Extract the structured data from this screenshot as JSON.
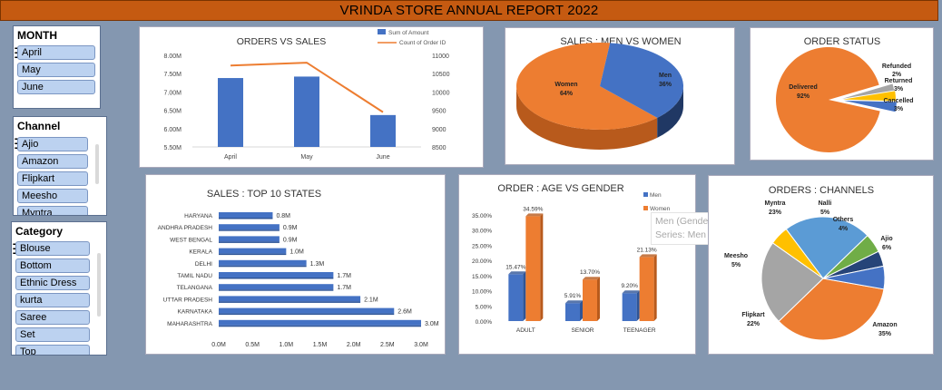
{
  "report_title": "VRINDA STORE ANNUAL  REPORT 2022",
  "slicers": {
    "month": {
      "title": "MONTH",
      "items": [
        "April",
        "May",
        "June"
      ]
    },
    "channel": {
      "title": "Channel",
      "items": [
        "Ajio",
        "Amazon",
        "Flipkart",
        "Meesho",
        "Myntra"
      ]
    },
    "category": {
      "title": "Category",
      "items": [
        "Blouse",
        "Bottom",
        "Ethnic Dress",
        "kurta",
        "Saree",
        "Set",
        "Top"
      ]
    }
  },
  "tooltip": {
    "line1": "Men (Gender)",
    "line2": "Series: Men"
  },
  "colors": {
    "blue": "#4472c4",
    "orange": "#ed7d31",
    "gray": "#a5a5a5",
    "yellow": "#ffc000",
    "green": "#70ad47",
    "navy": "#264478",
    "lightblue": "#5b9bd5"
  },
  "chart_data": [
    {
      "id": "orders_vs_sales",
      "type": "bar",
      "title": "ORDERS VS  SALES",
      "categories": [
        "April",
        "May",
        "June"
      ],
      "series": [
        {
          "name": "Sum of Amount",
          "values": [
            7.38,
            7.42,
            6.37
          ],
          "axis": "left"
        },
        {
          "name": "Count of Order ID",
          "values": [
            10720,
            10800,
            9450
          ],
          "axis": "right",
          "type": "line"
        }
      ],
      "ylim": [
        5.5,
        8.0
      ],
      "y_ticks": [
        "5.50M",
        "6.00M",
        "6.50M",
        "7.00M",
        "7.50M",
        "8.00M"
      ],
      "y2lim": [
        8500,
        11000
      ],
      "y2_ticks": [
        "8500",
        "9000",
        "9500",
        "10000",
        "10500",
        "11000"
      ]
    },
    {
      "id": "sales_men_women",
      "type": "pie",
      "title": "SALES : MEN VS WOMEN",
      "labels": [
        "Women",
        "Men"
      ],
      "values": [
        64,
        36
      ],
      "value_labels": [
        "64%",
        "36%"
      ]
    },
    {
      "id": "order_status",
      "type": "pie",
      "title": "ORDER STATUS",
      "labels": [
        "Delivered",
        "Refunded",
        "Returned",
        "Cancelled"
      ],
      "values": [
        92,
        2,
        3,
        3
      ],
      "value_labels": [
        "92%",
        "2%",
        "3%",
        "3%"
      ]
    },
    {
      "id": "top10_states",
      "type": "bar",
      "orientation": "horizontal",
      "title": "SALES : TOP 10 STATES",
      "categories": [
        "HARYANA",
        "ANDHRA PRADESH",
        "WEST BENGAL",
        "KERALA",
        "DELHI",
        "TAMIL NADU",
        "TELANGANA",
        "UTTAR PRADESH",
        "KARNATAKA",
        "MAHARASHTRA"
      ],
      "values": [
        0.8,
        0.9,
        0.9,
        1.0,
        1.3,
        1.7,
        1.7,
        2.1,
        2.6,
        3.0
      ],
      "value_labels": [
        "0.8M",
        "0.9M",
        "0.9M",
        "1.0M",
        "1.3M",
        "1.7M",
        "1.7M",
        "2.1M",
        "2.6M",
        "3.0M"
      ],
      "xlim": [
        0,
        3.0
      ],
      "x_ticks": [
        "0.0M",
        "0.5M",
        "1.0M",
        "1.5M",
        "2.0M",
        "2.5M",
        "3.0M"
      ]
    },
    {
      "id": "age_vs_gender",
      "type": "bar",
      "title": "ORDER : AGE VS GENDER",
      "categories": [
        "ADULT",
        "SENIOR",
        "TEENAGER"
      ],
      "series": [
        {
          "name": "Men",
          "values": [
            15.47,
            5.91,
            9.2
          ],
          "value_labels": [
            "15.47%",
            "5.91%",
            "9.20%"
          ]
        },
        {
          "name": "Women",
          "values": [
            34.59,
            13.7,
            21.13
          ],
          "value_labels": [
            "34.59%",
            "13.70%",
            "21.13%"
          ]
        }
      ],
      "ylim": [
        0,
        35
      ],
      "y_ticks": [
        "0.00%",
        "5.00%",
        "10.00%",
        "15.00%",
        "20.00%",
        "25.00%",
        "30.00%",
        "35.00%"
      ]
    },
    {
      "id": "orders_channels",
      "type": "pie",
      "title": "ORDERS : CHANNELS",
      "labels": [
        "Amazon",
        "Flipkart",
        "Meesho",
        "Myntra",
        "Nalli",
        "Others",
        "Ajio"
      ],
      "values": [
        35,
        22,
        5,
        23,
        5,
        4,
        6
      ],
      "value_labels": [
        "35%",
        "22%",
        "5%",
        "23%",
        "5%",
        "4%",
        "6%"
      ]
    }
  ]
}
